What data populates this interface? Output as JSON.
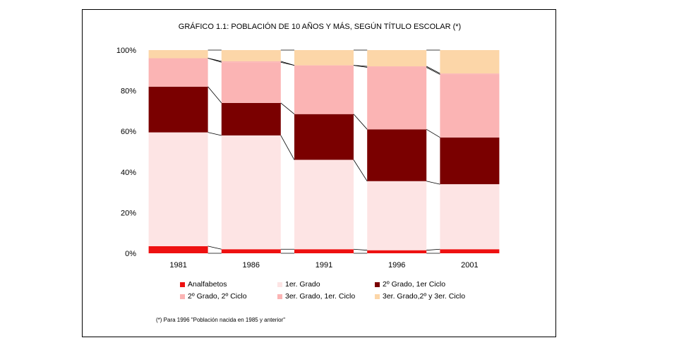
{
  "chart_data": {
    "type": "bar",
    "stacked": "percent",
    "title": "GRÁFICO 1.1: POBLACIÓN DE 10 AÑOS Y MÁS, SEGÚN TÍTULO ESCOLAR (*)",
    "categories": [
      "1981",
      "1986",
      "1991",
      "1996",
      "2001"
    ],
    "y_ticks": [
      "0%",
      "20%",
      "40%",
      "60%",
      "80%",
      "100%"
    ],
    "ylim": [
      0,
      100
    ],
    "series": [
      {
        "name": "Analfabetos",
        "color": "#ee1111",
        "values": [
          3.5,
          2,
          2,
          1.5,
          2
        ]
      },
      {
        "name": "1er. Grado",
        "color": "#fde4e4",
        "values": [
          56,
          56,
          44,
          34,
          32
        ]
      },
      {
        "name": "2º Grado, 1er Ciclo",
        "color": "#7a0000",
        "values": [
          22.5,
          16,
          22.5,
          25.5,
          23
        ]
      },
      {
        "name": "2º Grado, 2º  Ciclo",
        "color": "#fbb4b4",
        "values": [
          14,
          20,
          24,
          30.5,
          31
        ]
      },
      {
        "name": "3er. Grado, 1er. Ciclo",
        "color": "#fbb4b4",
        "values": [
          0,
          0.5,
          0,
          0.5,
          0.5
        ]
      },
      {
        "name": "3er. Grado,2º y 3er. Ciclo",
        "color": "#fcd6a8",
        "values": [
          4,
          5.5,
          7.5,
          8,
          11.5
        ]
      }
    ],
    "legend_position": "bottom",
    "grid": false
  },
  "footnote": "(*) Para 1996 \"Población nacida en 1985 y anterior\""
}
